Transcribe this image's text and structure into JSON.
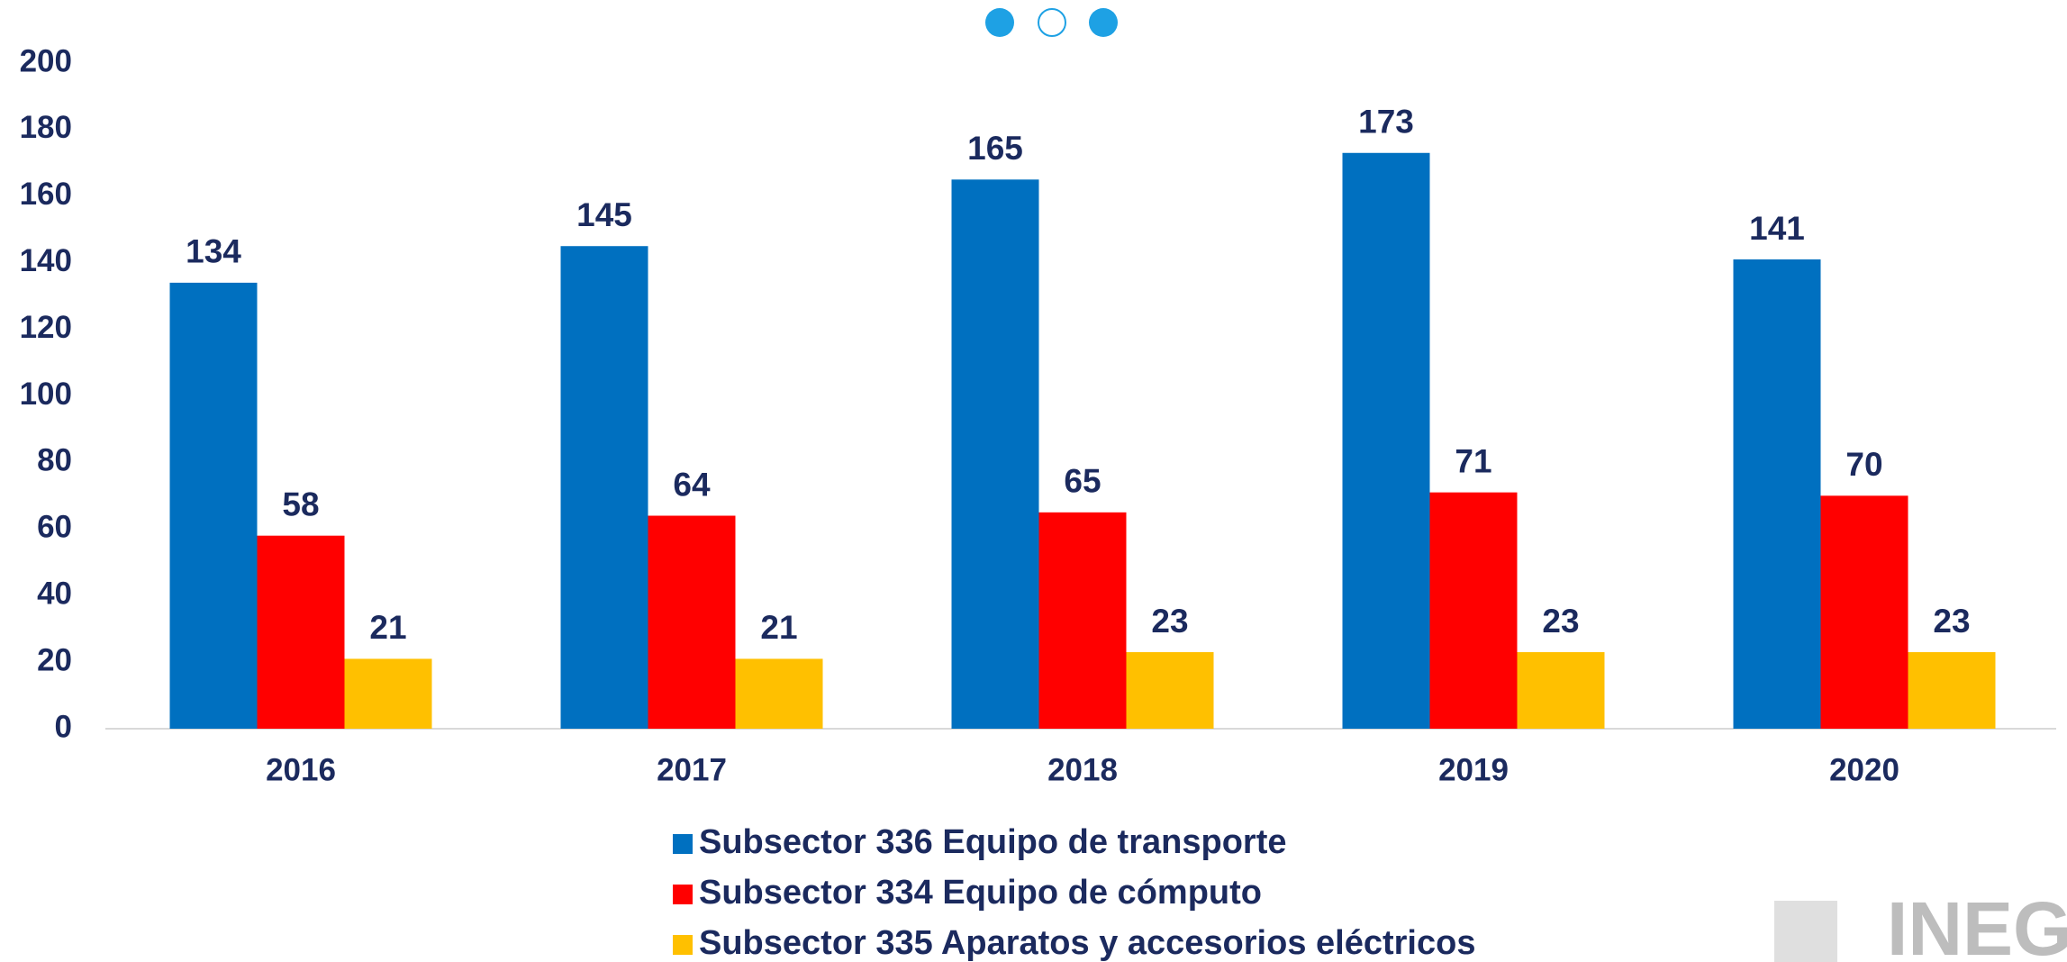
{
  "chart_data": {
    "type": "bar",
    "categories": [
      "2016",
      "2017",
      "2018",
      "2019",
      "2020"
    ],
    "series": [
      {
        "name": "Subsector 336 Equipo de transporte",
        "color": "#0070c0",
        "values": [
          134,
          145,
          165,
          173,
          141
        ]
      },
      {
        "name": "Subsector 334 Equipo de cómputo",
        "color": "#ff0000",
        "values": [
          58,
          64,
          65,
          71,
          70
        ]
      },
      {
        "name": "Subsector 335 Aparatos y accesorios eléctricos",
        "color": "#ffc000",
        "values": [
          21,
          21,
          23,
          23,
          23
        ]
      }
    ],
    "ylim": [
      0,
      200
    ],
    "yticks": [
      0,
      20,
      40,
      60,
      80,
      100,
      120,
      140,
      160,
      180,
      200
    ],
    "grid": false,
    "legend": "bottom"
  },
  "logo": "INEG"
}
